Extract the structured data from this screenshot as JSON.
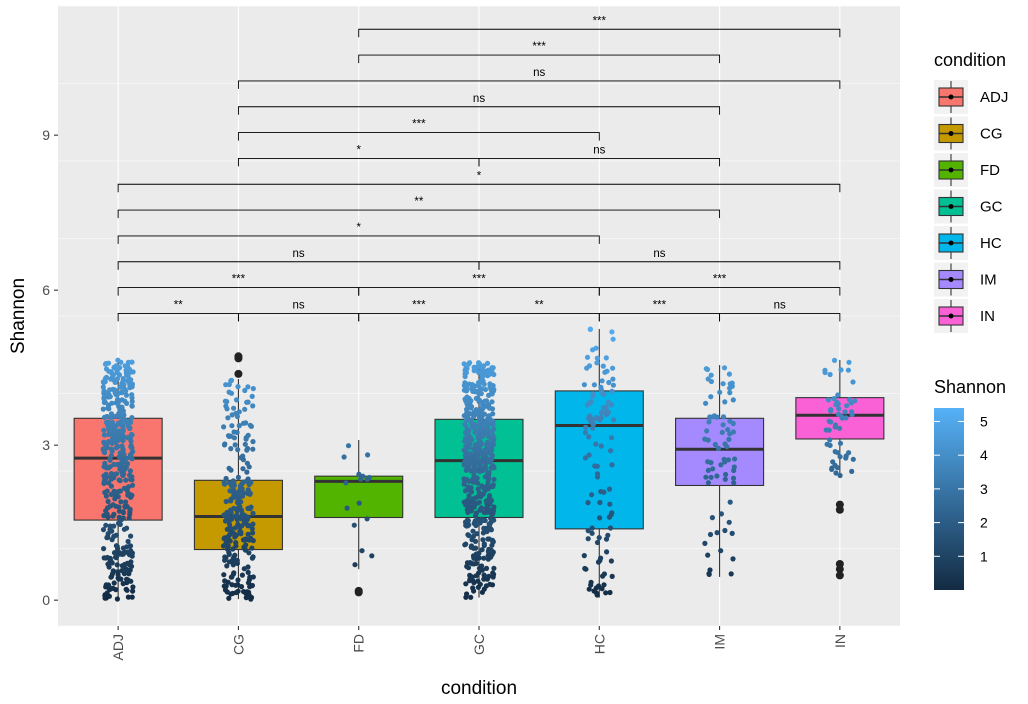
{
  "chart_data": {
    "type": "boxplot",
    "xlabel": "condition",
    "ylabel": "Shannon",
    "ylim": [
      -0.5,
      11.5
    ],
    "y_ticks": [
      0,
      3,
      6,
      9
    ],
    "grid": true,
    "categories": [
      "ADJ",
      "CG",
      "FD",
      "GC",
      "HC",
      "IM",
      "IN"
    ],
    "colors": [
      "#F8766D",
      "#C49A00",
      "#53B400",
      "#00C094",
      "#00B6EB",
      "#A58AFF",
      "#FB61D7"
    ],
    "boxes": [
      {
        "category": "ADJ",
        "q1": 1.55,
        "median": 2.75,
        "q3": 3.52,
        "whisker_low": 0.02,
        "whisker_high": 4.65,
        "n_points": 420,
        "outliers": []
      },
      {
        "category": "CG",
        "q1": 0.98,
        "median": 1.62,
        "q3": 2.32,
        "whisker_low": 0.02,
        "whisker_high": 4.28,
        "n_points": 260,
        "outliers": [
          4.72,
          4.68,
          4.38
        ]
      },
      {
        "category": "FD",
        "q1": 1.6,
        "median": 2.3,
        "q3": 2.4,
        "whisker_low": 0.6,
        "whisker_high": 3.1,
        "n_points": 16,
        "outliers": [
          0.18,
          0.15
        ]
      },
      {
        "category": "GC",
        "q1": 1.6,
        "median": 2.7,
        "q3": 3.5,
        "whisker_low": 0.05,
        "whisker_high": 4.6,
        "n_points": 500,
        "outliers": []
      },
      {
        "category": "HC",
        "q1": 1.38,
        "median": 3.38,
        "q3": 4.05,
        "whisker_low": 0.05,
        "whisker_high": 5.25,
        "n_points": 110,
        "outliers": []
      },
      {
        "category": "IM",
        "q1": 2.22,
        "median": 2.92,
        "q3": 3.52,
        "whisker_low": 0.45,
        "whisker_high": 4.55,
        "n_points": 75,
        "outliers": []
      },
      {
        "category": "IN",
        "q1": 3.12,
        "median": 3.58,
        "q3": 3.92,
        "whisker_low": 2.4,
        "whisker_high": 4.65,
        "n_points": 55,
        "outliers": [
          1.85,
          1.75,
          0.7,
          0.6,
          0.48
        ]
      }
    ],
    "comparisons": [
      {
        "from": "ADJ",
        "to": "CG",
        "y": 5.55,
        "label": "**"
      },
      {
        "from": "CG",
        "to": "FD",
        "y": 5.55,
        "label": "ns"
      },
      {
        "from": "FD",
        "to": "GC",
        "y": 5.55,
        "label": "***"
      },
      {
        "from": "GC",
        "to": "HC",
        "y": 5.55,
        "label": "**"
      },
      {
        "from": "HC",
        "to": "IM",
        "y": 5.55,
        "label": "***"
      },
      {
        "from": "IM",
        "to": "IN",
        "y": 5.55,
        "label": "ns"
      },
      {
        "from": "ADJ",
        "to": "FD",
        "y": 6.05,
        "label": "***"
      },
      {
        "from": "FD",
        "to": "HC",
        "y": 6.05,
        "label": "***"
      },
      {
        "from": "HC",
        "to": "IN",
        "y": 6.05,
        "label": "***"
      },
      {
        "from": "ADJ",
        "to": "GC",
        "y": 6.55,
        "label": "ns"
      },
      {
        "from": "GC",
        "to": "IN",
        "y": 6.55,
        "label": "ns"
      },
      {
        "from": "ADJ",
        "to": "HC",
        "y": 7.05,
        "label": "*"
      },
      {
        "from": "ADJ",
        "to": "IM",
        "y": 7.55,
        "label": "**"
      },
      {
        "from": "ADJ",
        "to": "IN",
        "y": 8.05,
        "label": "*"
      },
      {
        "from": "CG",
        "to": "GC",
        "y": 8.55,
        "label": "*"
      },
      {
        "from": "GC",
        "to": "IM",
        "y": 8.55,
        "label": "ns"
      },
      {
        "from": "CG",
        "to": "HC",
        "y": 9.05,
        "label": "***"
      },
      {
        "from": "CG",
        "to": "IM",
        "y": 9.55,
        "label": "ns"
      },
      {
        "from": "CG",
        "to": "IN",
        "y": 10.05,
        "label": "ns"
      },
      {
        "from": "FD",
        "to": "IM",
        "y": 10.55,
        "label": "***"
      },
      {
        "from": "FD",
        "to": "IN",
        "y": 11.05,
        "label": "***"
      }
    ],
    "legend": {
      "condition_title": "condition",
      "items": [
        "ADJ",
        "CG",
        "FD",
        "GC",
        "HC",
        "IM",
        "IN"
      ],
      "placement": "right"
    },
    "colorbar": {
      "title": "Shannon",
      "ticks": [
        1,
        2,
        3,
        4,
        5
      ],
      "range": [
        0,
        5.4
      ],
      "low_color": "#132B43",
      "high_color": "#56B1F7"
    }
  }
}
